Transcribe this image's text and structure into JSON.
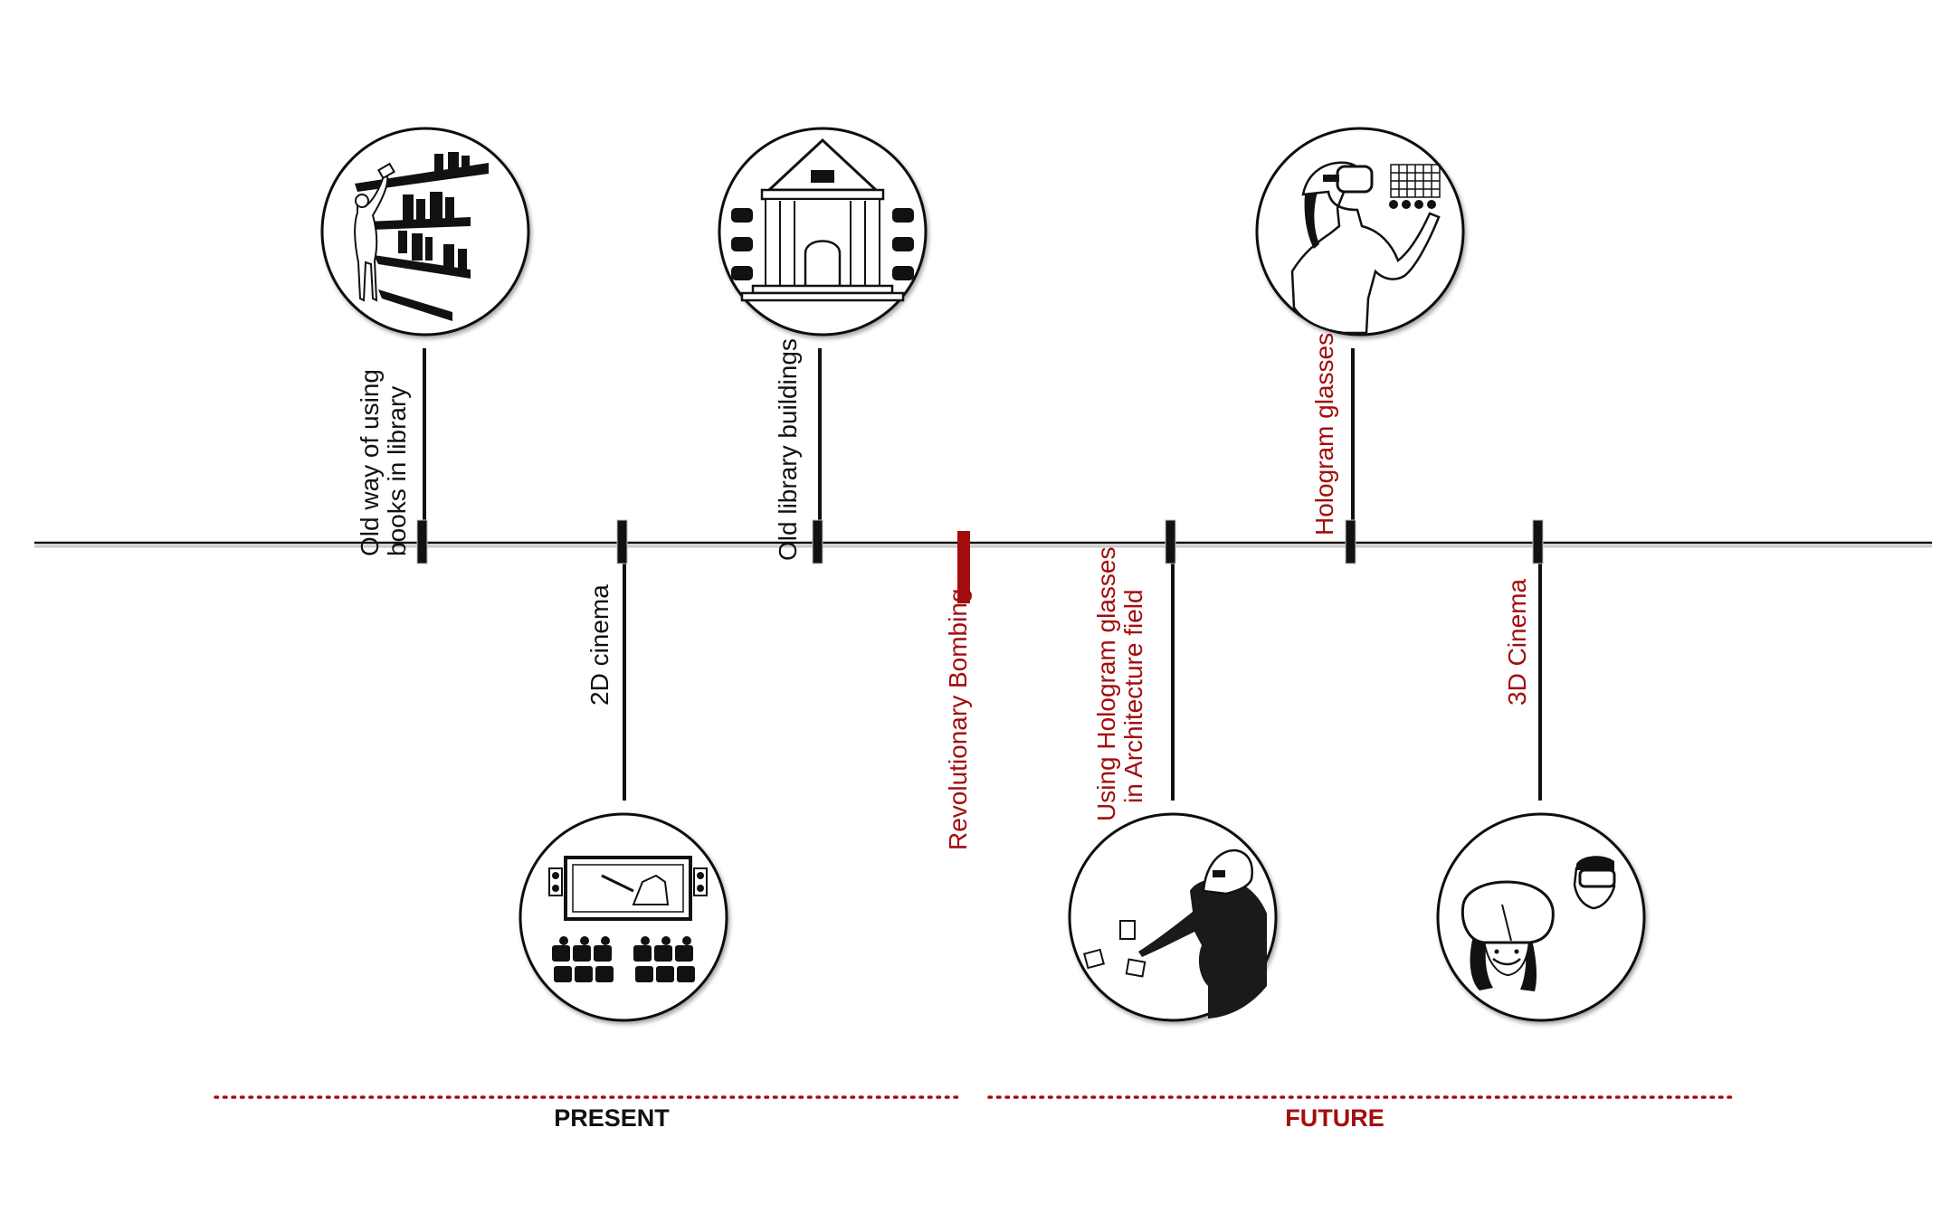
{
  "colors": {
    "ink": "#111111",
    "accent": "#a30d0d",
    "background": "#ffffff"
  },
  "events": [
    {
      "id": "old-library-use",
      "lines": [
        "Old way of using",
        "books in library"
      ],
      "side": "above",
      "color": "ink",
      "icon": "library-bookshelf-icon"
    },
    {
      "id": "2d-cinema",
      "lines": [
        "2D cinema"
      ],
      "side": "below",
      "color": "ink",
      "icon": "2d-cinema-icon"
    },
    {
      "id": "old-library-buildings",
      "lines": [
        "Old library buildings"
      ],
      "side": "above",
      "color": "ink",
      "icon": "library-building-icon"
    },
    {
      "id": "revolutionary-bombing",
      "lines": [
        "Revolutionary Bombing"
      ],
      "side": "below",
      "color": "accent",
      "icon": ""
    },
    {
      "id": "hologram-architecture",
      "lines": [
        "Using Hologram glasses",
        "in Architecture field"
      ],
      "side": "below",
      "color": "accent",
      "icon": "hologram-architecture-icon"
    },
    {
      "id": "hologram-glasses",
      "lines": [
        "Hologram glasses"
      ],
      "side": "above",
      "color": "accent",
      "icon": "hologram-glasses-icon"
    },
    {
      "id": "3d-cinema",
      "lines": [
        "3D Cinema"
      ],
      "side": "below",
      "color": "accent",
      "icon": "3d-cinema-icon"
    }
  ],
  "eras": {
    "present": {
      "label": "PRESENT",
      "color": "ink"
    },
    "future": {
      "label": "FUTURE",
      "color": "accent"
    }
  }
}
